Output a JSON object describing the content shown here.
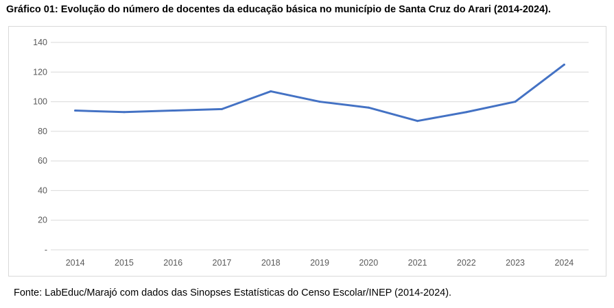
{
  "chart_data": {
    "type": "line",
    "title": "Gráfico 01: Evolução do número de docentes da educação básica no município de Santa Cruz do Arari (2014-2024).",
    "categories": [
      "2014",
      "2015",
      "2016",
      "2017",
      "2018",
      "2019",
      "2020",
      "2021",
      "2022",
      "2023",
      "2024"
    ],
    "series": [
      {
        "name": "Docentes",
        "values": [
          94,
          93,
          94,
          95,
          107,
          100,
          96,
          87,
          93,
          100,
          125
        ],
        "color": "#4472c4"
      }
    ],
    "yticks": [
      "-",
      "20",
      "40",
      "60",
      "80",
      "100",
      "120",
      "140"
    ],
    "ylim": [
      0,
      140
    ],
    "grid": true,
    "xlabel": "",
    "ylabel": ""
  },
  "source": "Fonte: LabEduc/Marajó com dados das Sinopses Estatísticas do Censo Escolar/INEP (2014-2024)."
}
